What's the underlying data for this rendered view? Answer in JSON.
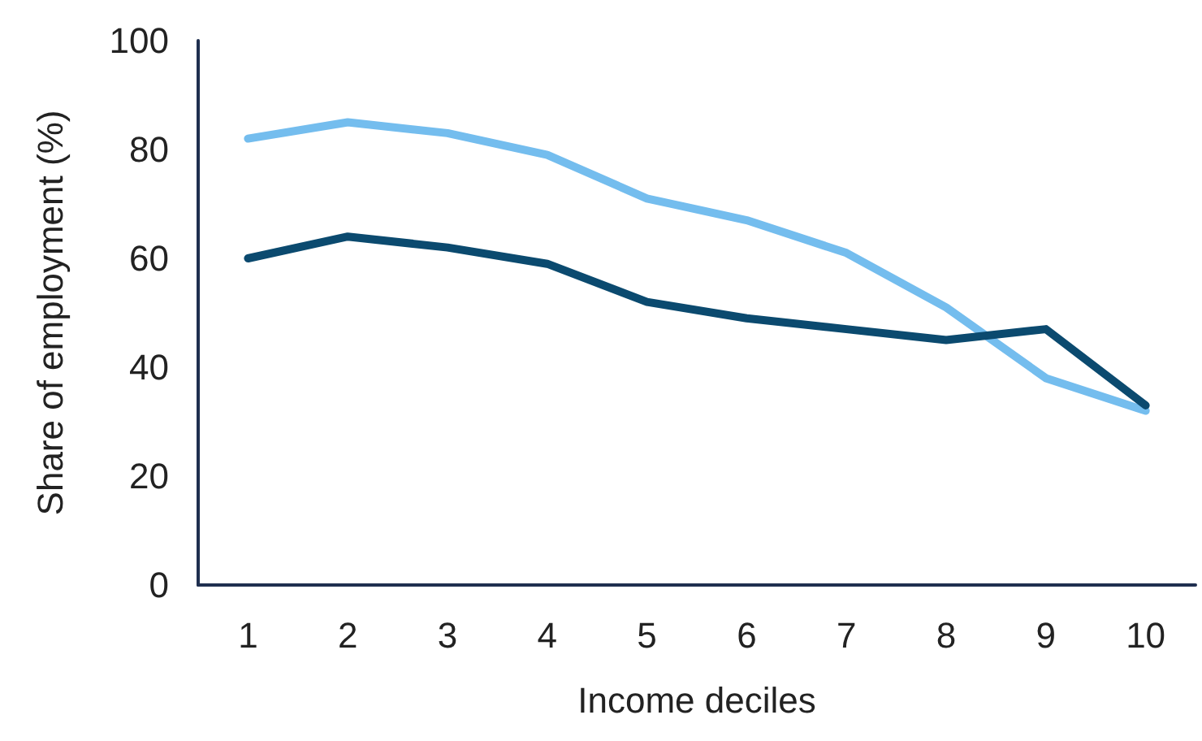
{
  "chart_data": {
    "type": "line",
    "xlabel": "Income deciles",
    "ylabel": "Share of employment (%)",
    "categories": [
      "1",
      "2",
      "3",
      "4",
      "5",
      "6",
      "7",
      "8",
      "9",
      "10"
    ],
    "series": [
      {
        "color": "#74bdee",
        "values": [
          82,
          85,
          83,
          79,
          71,
          67,
          61,
          51,
          38,
          32
        ]
      },
      {
        "color": "#0b4a6f",
        "values": [
          60,
          64,
          62,
          59,
          52,
          49,
          47,
          45,
          47,
          33
        ]
      }
    ],
    "ylim": [
      0,
      100
    ],
    "yticks": [
      0,
      20,
      40,
      60,
      80,
      100
    ],
    "grid": false,
    "marker": "none",
    "line_style": "solid"
  }
}
